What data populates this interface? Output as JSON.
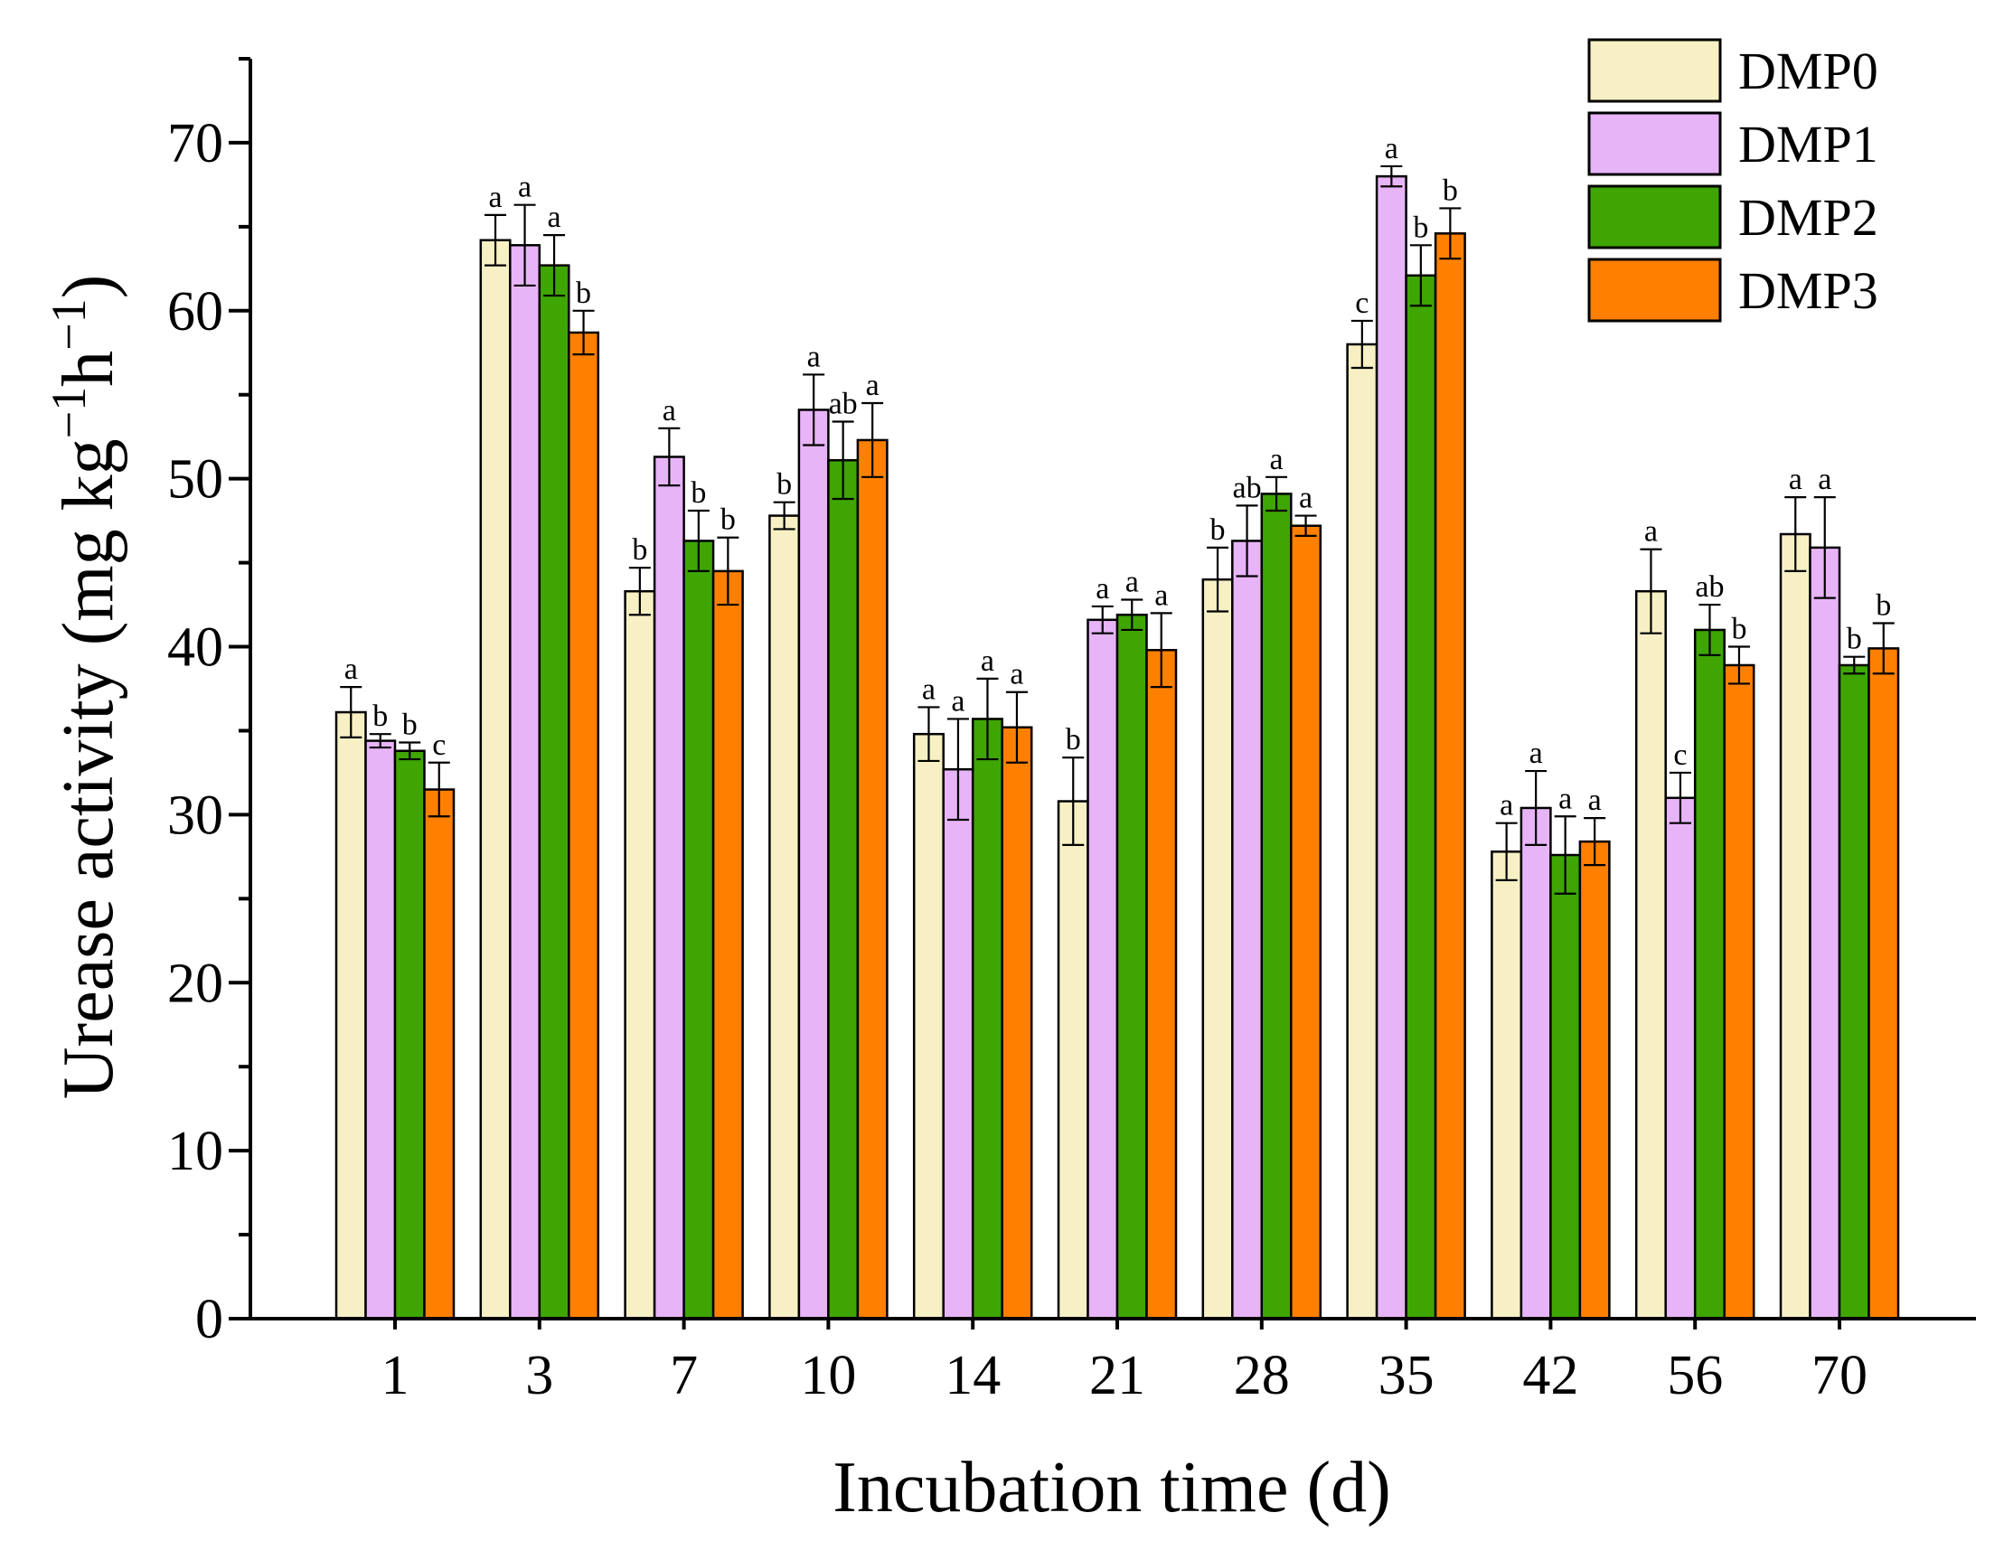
{
  "chart_data": {
    "type": "bar",
    "xlabel": "Incubation time (d)",
    "ylabel": {
      "prefix": "Urease activity (mg kg",
      "sup1": "−1",
      "mid": "h",
      "sup2": "−1",
      "suffix": ")"
    },
    "ylim": [
      0,
      75
    ],
    "yticks": [
      0,
      10,
      20,
      30,
      40,
      50,
      60,
      70
    ],
    "categories": [
      "1",
      "3",
      "7",
      "10",
      "14",
      "21",
      "28",
      "35",
      "42",
      "56",
      "70"
    ],
    "legend_position": "top-right",
    "grid": false,
    "series": [
      {
        "name": "DMP0",
        "color": "#F7F0C4",
        "values": [
          36.1,
          64.2,
          43.3,
          47.8,
          34.8,
          30.8,
          44.0,
          58.0,
          27.8,
          43.3,
          46.7
        ],
        "errors": [
          1.5,
          1.5,
          1.4,
          0.8,
          1.6,
          2.6,
          1.9,
          1.4,
          1.7,
          2.5,
          2.2
        ],
        "labels": [
          "a",
          "a",
          "b",
          "b",
          "a",
          "b",
          "b",
          "c",
          "a",
          "a",
          "a"
        ]
      },
      {
        "name": "DMP1",
        "color": "#E8B4F8",
        "values": [
          34.4,
          63.9,
          51.3,
          54.1,
          32.7,
          41.6,
          46.3,
          68.0,
          30.4,
          31.0,
          45.9
        ],
        "errors": [
          0.4,
          2.4,
          1.7,
          2.1,
          3.0,
          0.8,
          2.1,
          0.6,
          2.2,
          1.5,
          3.0
        ],
        "labels": [
          "b",
          "a",
          "a",
          "a",
          "a",
          "a",
          "ab",
          "a",
          "a",
          "c",
          "a"
        ]
      },
      {
        "name": "DMP2",
        "color": "#3EA502",
        "values": [
          33.8,
          62.7,
          46.3,
          51.1,
          35.7,
          41.9,
          49.1,
          62.1,
          27.6,
          41.0,
          38.9
        ],
        "errors": [
          0.5,
          1.8,
          1.8,
          2.3,
          2.4,
          0.9,
          1.0,
          1.8,
          2.3,
          1.5,
          0.5
        ],
        "labels": [
          "b",
          "a",
          "b",
          "ab",
          "a",
          "a",
          "a",
          "b",
          "a",
          "ab",
          "b"
        ]
      },
      {
        "name": "DMP3",
        "color": "#FF8000",
        "values": [
          31.5,
          58.7,
          44.5,
          52.3,
          35.2,
          39.8,
          47.2,
          64.6,
          28.4,
          38.9,
          39.9
        ],
        "errors": [
          1.6,
          1.3,
          2.0,
          2.2,
          2.1,
          2.2,
          0.6,
          1.5,
          1.4,
          1.1,
          1.5
        ],
        "labels": [
          "c",
          "b",
          "b",
          "a",
          "a",
          "a",
          "a",
          "b",
          "a",
          "b",
          "b"
        ]
      }
    ]
  }
}
